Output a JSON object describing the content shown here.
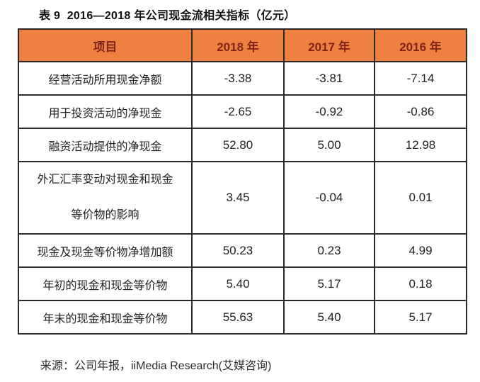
{
  "title": "表 9  2016—2018 年公司现金流相关指标（亿元）",
  "source": "来源：公司年报，iiMedia Research(艾媒咨询)",
  "colors": {
    "header_bg": "#EE8040",
    "header_text": "#80231A",
    "border": "#2A2A2A",
    "body_text": "#222222",
    "page_bg": "#FFFFFF"
  },
  "chart_data": {
    "type": "table",
    "title": "表 9 2016—2018 年公司现金流相关指标（亿元）",
    "unit": "亿元",
    "columns": [
      "项目",
      "2018 年",
      "2017 年",
      "2016 年"
    ],
    "rows": [
      {
        "label": "经营活动所用现金净额",
        "values": [
          "-3.38",
          "-3.81",
          "-7.14"
        ]
      },
      {
        "label": "用于投资活动的净现金",
        "values": [
          "-2.65",
          "-0.92",
          "-0.86"
        ]
      },
      {
        "label": "融资活动提供的净现金",
        "values": [
          "52.80",
          "5.00",
          "12.98"
        ]
      },
      {
        "label": "外汇汇率变动对现金和现金\n等价物的影响",
        "values": [
          "3.45",
          "-0.04",
          "0.01"
        ]
      },
      {
        "label": "现金及现金等价物净增加额",
        "values": [
          "50.23",
          "0.23",
          "4.99"
        ]
      },
      {
        "label": "年初的现金和现金等价物",
        "values": [
          "5.40",
          "5.17",
          "0.18"
        ]
      },
      {
        "label": "年末的现金和现金等价物",
        "values": [
          "55.63",
          "5.40",
          "5.17"
        ]
      }
    ],
    "source": "来源：公司年报，iiMedia Research(艾媒咨询)",
    "layout": {
      "grid": true,
      "header_style": "orange-filled",
      "value_align": "center"
    }
  }
}
